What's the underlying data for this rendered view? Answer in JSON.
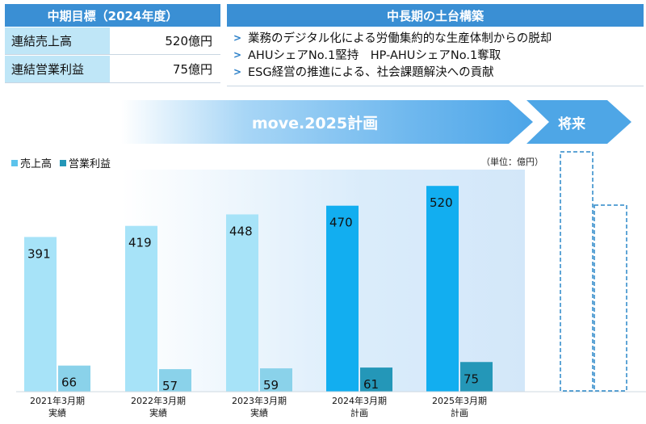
{
  "targets": {
    "title": "中期目標（2024年度）",
    "rows": [
      {
        "label": "連結売上高",
        "value": "520億円"
      },
      {
        "label": "連結営業利益",
        "value": "75億円"
      }
    ]
  },
  "foundation": {
    "title": "中長期の土台構築",
    "items": [
      "業務のデジタル化による労働集約的な生産体制からの脱却",
      "AHUシェアNo.1堅持　HP-AHUシェアNo.1奪取",
      "ESG経営の推進による、社会課題解決への貢献"
    ]
  },
  "arrows": {
    "plan": "move.2025計画",
    "future": "将来"
  },
  "unit": "（単位：億円）",
  "colors": {
    "header_blue": "#3a8fd4",
    "sales_actual": "#a7e3f8",
    "profit_actual": "#8ad2ea",
    "sales_plan": "#12aef0",
    "profit_plan": "#2497b8"
  },
  "chart_data": {
    "type": "bar",
    "categories": [
      {
        "year": "2021年3月期",
        "kind": "実績"
      },
      {
        "year": "2022年3月期",
        "kind": "実績"
      },
      {
        "year": "2023年3月期",
        "kind": "実績"
      },
      {
        "year": "2024年3月期",
        "kind": "計画"
      },
      {
        "year": "2025年3月期",
        "kind": "計画"
      }
    ],
    "series": [
      {
        "name": "売上高",
        "values": [
          391,
          419,
          448,
          470,
          520
        ]
      },
      {
        "name": "営業利益",
        "values": [
          66,
          57,
          59,
          61,
          75
        ]
      }
    ],
    "future_placeholder": true,
    "legend": "top-left",
    "grid": false
  }
}
